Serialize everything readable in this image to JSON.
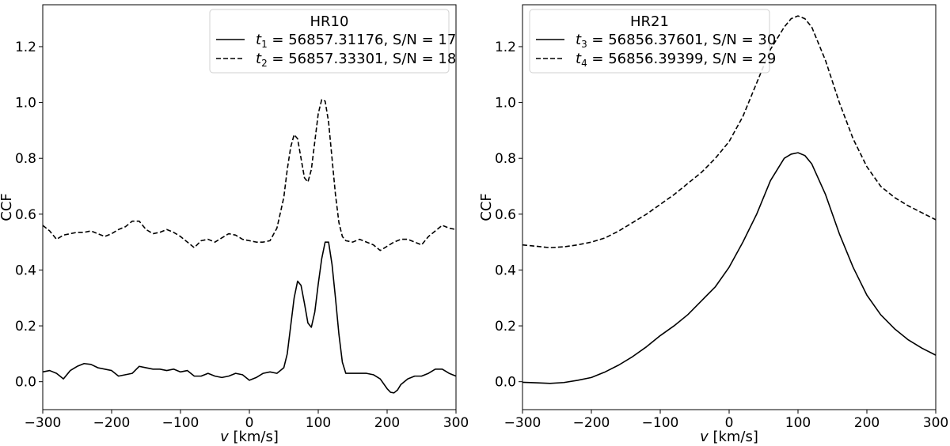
{
  "chart_data": [
    {
      "type": "line",
      "panel": "left",
      "legend_title": "HR10",
      "legend_position": "top-right",
      "xlabel": "v [km/s]",
      "ylabel": "CCF",
      "xlim": [
        -300,
        300
      ],
      "ylim": [
        -0.1,
        1.35
      ],
      "xticks": [
        -300,
        -200,
        -100,
        0,
        100,
        200,
        300
      ],
      "xtick_labels": [
        "−300",
        "−200",
        "−100",
        "0",
        "100",
        "200",
        "300"
      ],
      "yticks": [
        0.0,
        0.2,
        0.4,
        0.6,
        0.8,
        1.0,
        1.2
      ],
      "ytick_labels": [
        "0.0",
        "0.2",
        "0.4",
        "0.6",
        "0.8",
        "1.0",
        "1.2"
      ],
      "series": [
        {
          "var": "t",
          "sub": "1",
          "time": "56857.31176",
          "snr_label": "S/N = 17",
          "style": "solid",
          "x": [
            -300,
            -290,
            -280,
            -270,
            -260,
            -250,
            -240,
            -230,
            -220,
            -210,
            -200,
            -190,
            -180,
            -170,
            -160,
            -150,
            -140,
            -130,
            -120,
            -110,
            -100,
            -90,
            -80,
            -70,
            -60,
            -50,
            -40,
            -30,
            -20,
            -10,
            0,
            10,
            20,
            30,
            40,
            50,
            55,
            60,
            65,
            70,
            75,
            80,
            85,
            90,
            95,
            100,
            105,
            110,
            115,
            120,
            125,
            130,
            135,
            140,
            150,
            160,
            170,
            180,
            190,
            200,
            205,
            210,
            215,
            220,
            230,
            240,
            250,
            260,
            270,
            280,
            290,
            300
          ],
          "y": [
            0.035,
            0.04,
            0.03,
            0.01,
            0.04,
            0.055,
            0.065,
            0.062,
            0.05,
            0.045,
            0.04,
            0.02,
            0.025,
            0.03,
            0.055,
            0.05,
            0.045,
            0.045,
            0.04,
            0.045,
            0.035,
            0.04,
            0.02,
            0.02,
            0.03,
            0.02,
            0.015,
            0.02,
            0.03,
            0.025,
            0.005,
            0.015,
            0.03,
            0.035,
            0.03,
            0.05,
            0.1,
            0.2,
            0.3,
            0.36,
            0.345,
            0.28,
            0.21,
            0.195,
            0.25,
            0.35,
            0.44,
            0.5,
            0.5,
            0.42,
            0.3,
            0.17,
            0.07,
            0.03,
            0.03,
            0.03,
            0.03,
            0.025,
            0.01,
            -0.025,
            -0.038,
            -0.04,
            -0.03,
            -0.01,
            0.01,
            0.02,
            0.02,
            0.03,
            0.045,
            0.045,
            0.03,
            0.02
          ]
        },
        {
          "var": "t",
          "sub": "2",
          "time": "56857.33301",
          "snr_label": "S/N = 18",
          "style": "dashed",
          "x": [
            -300,
            -290,
            -280,
            -270,
            -260,
            -250,
            -240,
            -230,
            -220,
            -210,
            -200,
            -190,
            -180,
            -170,
            -160,
            -150,
            -140,
            -130,
            -120,
            -110,
            -100,
            -90,
            -80,
            -70,
            -60,
            -50,
            -40,
            -30,
            -20,
            -10,
            0,
            10,
            20,
            30,
            40,
            50,
            55,
            60,
            65,
            70,
            75,
            80,
            85,
            90,
            95,
            100,
            105,
            110,
            115,
            120,
            125,
            130,
            135,
            140,
            150,
            160,
            170,
            180,
            190,
            200,
            210,
            220,
            230,
            240,
            250,
            260,
            270,
            280,
            290,
            300
          ],
          "y": [
            0.56,
            0.54,
            0.51,
            0.525,
            0.53,
            0.535,
            0.535,
            0.54,
            0.53,
            0.52,
            0.53,
            0.545,
            0.555,
            0.575,
            0.575,
            0.545,
            0.53,
            0.535,
            0.545,
            0.535,
            0.52,
            0.5,
            0.48,
            0.505,
            0.51,
            0.5,
            0.515,
            0.53,
            0.525,
            0.51,
            0.505,
            0.5,
            0.5,
            0.505,
            0.55,
            0.66,
            0.76,
            0.84,
            0.885,
            0.87,
            0.8,
            0.73,
            0.715,
            0.76,
            0.86,
            0.96,
            1.01,
            1.005,
            0.93,
            0.8,
            0.67,
            0.57,
            0.52,
            0.505,
            0.5,
            0.51,
            0.5,
            0.49,
            0.47,
            0.485,
            0.5,
            0.51,
            0.51,
            0.5,
            0.49,
            0.52,
            0.54,
            0.56,
            0.55,
            0.545
          ]
        }
      ]
    },
    {
      "type": "line",
      "panel": "right",
      "legend_title": "HR21",
      "legend_position": "top-left",
      "xlabel": "v [km/s]",
      "ylabel": "CCF",
      "xlim": [
        -300,
        300
      ],
      "ylim": [
        -0.1,
        1.35
      ],
      "xticks": [
        -300,
        -200,
        -100,
        0,
        100,
        200,
        300
      ],
      "xtick_labels": [
        "−300",
        "−200",
        "−100",
        "0",
        "100",
        "200",
        "300"
      ],
      "yticks": [
        0.0,
        0.2,
        0.4,
        0.6,
        0.8,
        1.0,
        1.2
      ],
      "ytick_labels": [
        "0.0",
        "0.2",
        "0.4",
        "0.6",
        "0.8",
        "1.0",
        "1.2"
      ],
      "series": [
        {
          "var": "t",
          "sub": "3",
          "time": "56856.37601",
          "snr_label": "S/N = 30",
          "style": "solid",
          "x": [
            -300,
            -280,
            -260,
            -240,
            -220,
            -200,
            -180,
            -160,
            -140,
            -120,
            -100,
            -80,
            -60,
            -40,
            -20,
            0,
            20,
            40,
            60,
            80,
            90,
            100,
            110,
            120,
            140,
            160,
            180,
            200,
            220,
            240,
            260,
            280,
            300
          ],
          "y": [
            -0.002,
            -0.004,
            -0.006,
            -0.003,
            0.005,
            0.015,
            0.035,
            0.06,
            0.09,
            0.125,
            0.165,
            0.2,
            0.24,
            0.29,
            0.34,
            0.41,
            0.5,
            0.6,
            0.72,
            0.8,
            0.815,
            0.82,
            0.81,
            0.78,
            0.67,
            0.53,
            0.41,
            0.31,
            0.24,
            0.19,
            0.15,
            0.12,
            0.095
          ]
        },
        {
          "var": "t",
          "sub": "4",
          "time": "56856.39399",
          "snr_label": "S/N = 29",
          "style": "dashed",
          "x": [
            -300,
            -280,
            -260,
            -240,
            -220,
            -200,
            -180,
            -160,
            -140,
            -120,
            -100,
            -80,
            -60,
            -40,
            -20,
            0,
            20,
            40,
            60,
            80,
            90,
            100,
            110,
            120,
            140,
            160,
            180,
            200,
            220,
            240,
            260,
            280,
            300
          ],
          "y": [
            0.49,
            0.485,
            0.48,
            0.483,
            0.49,
            0.5,
            0.515,
            0.54,
            0.57,
            0.6,
            0.635,
            0.67,
            0.71,
            0.75,
            0.8,
            0.86,
            0.95,
            1.07,
            1.19,
            1.27,
            1.3,
            1.31,
            1.3,
            1.27,
            1.15,
            1.0,
            0.87,
            0.77,
            0.7,
            0.66,
            0.63,
            0.605,
            0.58
          ]
        }
      ]
    }
  ]
}
